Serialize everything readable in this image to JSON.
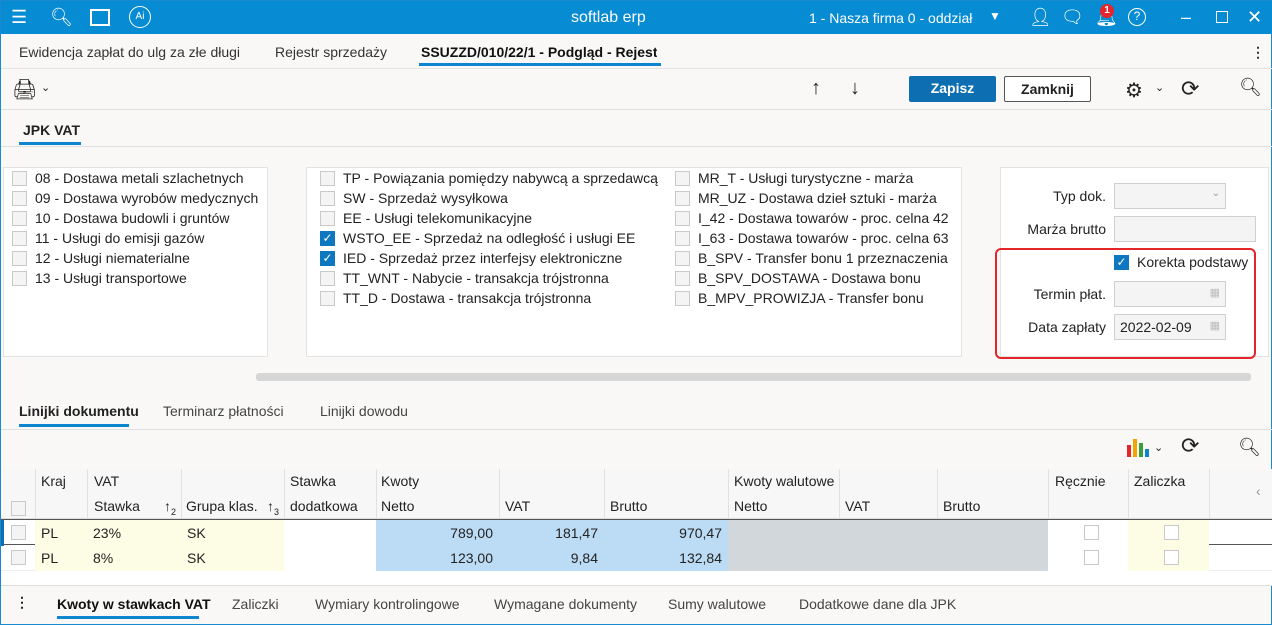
{
  "app": {
    "title": "softlab erp",
    "company": "1 - Nasza firma 0 - oddział",
    "notifications": "1"
  },
  "tabs": [
    {
      "label": "Ewidencja zapłat do ulg za złe długi"
    },
    {
      "label": "Rejestr sprzedaży"
    },
    {
      "label": "SSUZZD/010/22/1 - Podgląd - Rejestr"
    }
  ],
  "toolbar": {
    "save": "Zapisz",
    "close": "Zamknij"
  },
  "section_tab": "JPK VAT",
  "checkboxes_col1": [
    {
      "label": "08 - Dostawa metali szlachetnych",
      "checked": false
    },
    {
      "label": "09 - Dostawa wyrobów medycznych",
      "checked": false
    },
    {
      "label": "10 - Dostawa budowli i gruntów",
      "checked": false
    },
    {
      "label": "11 - Usługi do emisji gazów",
      "checked": false
    },
    {
      "label": "12 - Usługi niematerialne",
      "checked": false
    },
    {
      "label": "13 - Usługi transportowe",
      "checked": false
    }
  ],
  "checkboxes_col2": [
    {
      "label": "TP - Powiązania pomiędzy nabywcą a sprzedawcą",
      "checked": false
    },
    {
      "label": "SW - Sprzedaż wysyłkowa",
      "checked": false
    },
    {
      "label": "EE - Usługi telekomunikacyjne",
      "checked": false
    },
    {
      "label": "WSTO_EE - Sprzedaż na odległość i usługi EE",
      "checked": true
    },
    {
      "label": "IED - Sprzedaż przez interfejsy elektroniczne",
      "checked": true
    },
    {
      "label": "TT_WNT - Nabycie - transakcja trójstronna",
      "checked": false
    },
    {
      "label": "TT_D - Dostawa - transakcja trójstronna",
      "checked": false
    }
  ],
  "checkboxes_col3": [
    {
      "label": "MR_T - Usługi turystyczne - marża",
      "checked": false
    },
    {
      "label": "MR_UZ - Dostawa dzieł sztuki - marża",
      "checked": false
    },
    {
      "label": "I_42 - Dostawa towarów - proc. celna 42",
      "checked": false
    },
    {
      "label": "I_63 - Dostawa towarów -  proc. celna 63",
      "checked": false
    },
    {
      "label": "B_SPV - Transfer bonu 1 przeznaczenia",
      "checked": false
    },
    {
      "label": "B_SPV_DOSTAWA - Dostawa bonu",
      "checked": false
    },
    {
      "label": "B_MPV_PROWIZJA -  Transfer bonu",
      "checked": false
    }
  ],
  "form": {
    "typ_dok_label": "Typ dok.",
    "typ_dok_value": "",
    "marza_label": "Marża brutto",
    "marza_value": "",
    "korekta_label": "Korekta podstawy",
    "korekta_checked": true,
    "termin_label": "Termin płat.",
    "termin_value": "",
    "data_label": "Data zapłaty",
    "data_value": "2022-02-09"
  },
  "lower_tabs": [
    "Linijki dokumentu",
    "Terminarz płatności",
    "Linijki dowodu"
  ],
  "table": {
    "group_headers": {
      "kraj": "Kraj",
      "vat": "VAT",
      "stawka_dod_1": "Stawka",
      "stawka_dod_2": "dodatkowa",
      "kwoty": "Kwoty",
      "kwoty_wal": "Kwoty walutowe",
      "recznie": "Ręcznie",
      "zaliczka": "Zaliczka"
    },
    "sub_headers": {
      "stawka": "Stawka",
      "sort2": "2",
      "grupa": "Grupa klas.",
      "sort3": "3",
      "netto": "Netto",
      "vat": "VAT",
      "brutto": "Brutto",
      "w_netto": "Netto",
      "w_vat": "VAT",
      "w_brutto": "Brutto"
    },
    "rows": [
      {
        "kraj": "PL",
        "stawka": "23%",
        "grupa": "SK",
        "netto": "789,00",
        "vat": "181,47",
        "brutto": "970,47"
      },
      {
        "kraj": "PL",
        "stawka": "8%",
        "grupa": "SK",
        "netto": "123,00",
        "vat": "9,84",
        "brutto": "132,84"
      }
    ]
  },
  "bottom_tabs": [
    "Kwoty w stawkach VAT",
    "Zaliczki",
    "Wymiary kontrolingowe",
    "Wymagane dokumenty",
    "Sumy walutowe",
    "Dodatkowe dane dla JPK"
  ]
}
